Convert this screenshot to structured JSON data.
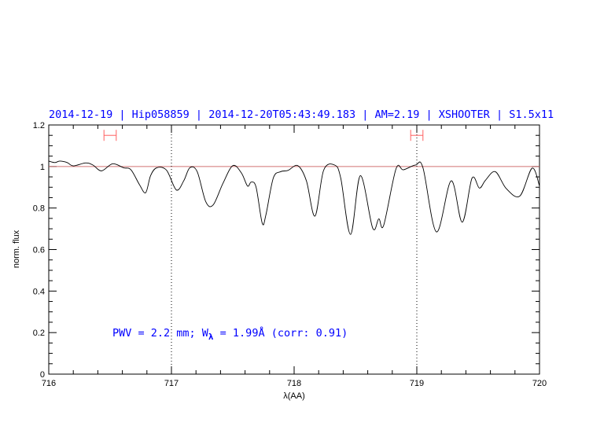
{
  "chart_data": {
    "type": "line",
    "title": "2014-12-19 | Hip058859 | 2014-12-20T05:43:49.183 | AM=2.19 | XSHOOTER | S1.5x11",
    "xlabel": "λ(AA)",
    "ylabel": "norm. flux",
    "xlim": [
      716,
      720
    ],
    "ylim": [
      0,
      1.2
    ],
    "xticks": [
      "716",
      "717",
      "718",
      "719",
      "720"
    ],
    "yticks": [
      "0",
      "0.2",
      "0.4",
      "0.6",
      "0.8",
      "1",
      "1.2"
    ],
    "grid": false,
    "annotation": {
      "prefix": "PWV = 2.2 mm; W",
      "sub": "λ",
      "suffix": " = 1.99Å (corr: 0.91)"
    },
    "reference_line": 1.0,
    "vertical_markers": [
      717,
      719
    ],
    "error_bars": [
      {
        "x": [
          716.45,
          716.55
        ],
        "y": 1.15
      },
      {
        "x": [
          718.95,
          719.05
        ],
        "y": 1.15
      }
    ],
    "colors": {
      "series": "#000000",
      "title": "#0000ff",
      "annotation": "#0000ff",
      "error_bars": "#ff6060",
      "reference_line": "#d07070"
    },
    "series": [
      {
        "x": [
          716.0,
          716.05,
          716.09,
          716.15,
          716.2,
          716.3,
          716.36,
          716.43,
          716.52,
          716.61,
          716.67,
          716.74,
          716.79,
          716.83,
          716.88,
          716.96,
          717.04,
          717.1,
          717.15,
          717.21,
          717.28,
          717.34,
          717.42,
          717.5,
          717.57,
          717.62,
          717.65,
          717.69,
          717.74,
          717.77,
          717.83,
          717.89,
          717.95,
          718.03,
          718.1,
          718.17,
          718.24,
          718.33,
          718.38,
          718.46,
          718.54,
          718.64,
          718.69,
          718.73,
          718.83,
          718.89,
          718.99,
          719.05,
          719.16,
          719.28,
          719.37,
          719.45,
          719.51,
          719.56,
          719.64,
          719.73,
          719.84,
          719.94,
          720.0
        ],
        "y": [
          1.026,
          1.019,
          1.026,
          1.019,
          1.003,
          1.017,
          1.007,
          0.979,
          1.013,
          0.994,
          0.984,
          0.912,
          0.874,
          0.956,
          0.994,
          0.982,
          0.887,
          0.931,
          0.994,
          0.975,
          0.83,
          0.815,
          0.919,
          1.004,
          0.969,
          0.906,
          0.925,
          0.9,
          0.727,
          0.767,
          0.944,
          0.975,
          0.981,
          1.004,
          0.931,
          0.761,
          0.981,
          1.007,
          0.944,
          0.673,
          0.956,
          0.704,
          0.748,
          0.717,
          0.988,
          0.984,
          1.007,
          0.994,
          0.685,
          0.931,
          0.732,
          0.944,
          0.896,
          0.934,
          0.975,
          0.893,
          0.858,
          0.992,
          0.906
        ]
      }
    ]
  }
}
